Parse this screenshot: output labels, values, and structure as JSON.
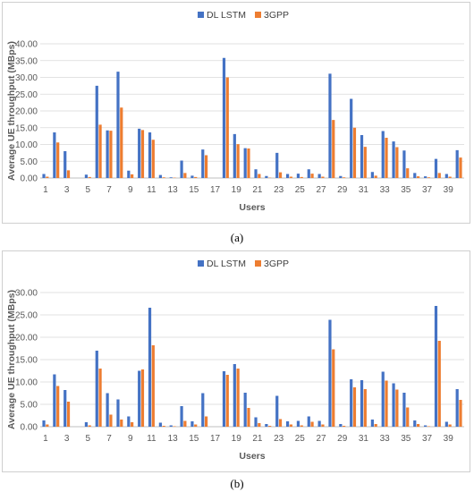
{
  "colors": {
    "dl_lstm": "#4472c4",
    "threegpp": "#ed7d31",
    "grid": "#d9d9d9",
    "axis": "#bfbfbf"
  },
  "figure_labels": {
    "a": "(a)",
    "b": "(b)"
  },
  "chart_data": [
    {
      "type": "bar",
      "panel": "a",
      "ylabel": "Average UE throughput (MBps)",
      "xlabel": "Users",
      "ylim": [
        0,
        40
      ],
      "ytick_values": [
        0,
        5,
        10,
        15,
        20,
        25,
        30,
        35,
        40
      ],
      "ytick_labels": [
        "0.00",
        "5.00",
        "10.00",
        "15.00",
        "20.00",
        "25.00",
        "30.00",
        "35.00",
        "40.00"
      ],
      "categories": [
        1,
        2,
        3,
        4,
        5,
        6,
        7,
        8,
        9,
        10,
        11,
        12,
        13,
        14,
        15,
        16,
        17,
        18,
        19,
        20,
        21,
        22,
        23,
        24,
        25,
        26,
        27,
        28,
        29,
        30,
        31,
        32,
        33,
        34,
        35,
        36,
        37,
        38,
        39,
        40
      ],
      "xtick_labels": [
        "1",
        "3",
        "5",
        "7",
        "9",
        "11",
        "13",
        "15",
        "17",
        "19",
        "21",
        "23",
        "25",
        "27",
        "29",
        "31",
        "33",
        "35",
        "37",
        "39"
      ],
      "legend_position": "top",
      "grid": true,
      "series": [
        {
          "name": "DL LSTM",
          "values": [
            1.2,
            13.6,
            8.0,
            0,
            1.0,
            27.5,
            14.2,
            31.7,
            2.2,
            14.7,
            13.6,
            0.9,
            0.2,
            5.2,
            0.7,
            8.5,
            0,
            35.8,
            13.1,
            8.9,
            2.6,
            0.6,
            7.5,
            1.2,
            1.3,
            2.6,
            1.2,
            31.1,
            0.6,
            23.6,
            12.8,
            1.8,
            14.0,
            10.9,
            8.2,
            1.5,
            0.5,
            5.7,
            1.2,
            8.3
          ]
        },
        {
          "name": "3GPP",
          "values": [
            0.4,
            10.6,
            2.3,
            0,
            0.3,
            15.9,
            14.1,
            21.0,
            1.1,
            14.3,
            11.4,
            0.2,
            0.1,
            1.5,
            0.3,
            6.8,
            0,
            30.0,
            10.1,
            8.8,
            1.2,
            0.1,
            1.7,
            0.4,
            0.3,
            1.3,
            0.4,
            17.3,
            0.2,
            15.0,
            9.3,
            0.7,
            12.0,
            9.2,
            2.9,
            0.5,
            0.2,
            1.5,
            0.4,
            6.1
          ]
        }
      ]
    },
    {
      "type": "bar",
      "panel": "b",
      "ylabel": "Average UE throughput (MBps)",
      "xlabel": "Users",
      "ylim": [
        0,
        30
      ],
      "ytick_values": [
        0,
        5,
        10,
        15,
        20,
        25,
        30
      ],
      "ytick_labels": [
        "0.00",
        "5.00",
        "10.00",
        "15.00",
        "20.00",
        "25.00",
        "30.00"
      ],
      "categories": [
        1,
        2,
        3,
        4,
        5,
        6,
        7,
        8,
        9,
        10,
        11,
        12,
        13,
        14,
        15,
        16,
        17,
        18,
        19,
        20,
        21,
        22,
        23,
        24,
        25,
        26,
        27,
        28,
        29,
        30,
        31,
        32,
        33,
        34,
        35,
        36,
        37,
        38,
        39,
        40
      ],
      "xtick_labels": [
        "1",
        "3",
        "5",
        "7",
        "9",
        "11",
        "13",
        "15",
        "17",
        "19",
        "21",
        "23",
        "25",
        "27",
        "29",
        "31",
        "33",
        "35",
        "37",
        "39"
      ],
      "legend_position": "top",
      "grid": true,
      "series": [
        {
          "name": "DL LSTM",
          "values": [
            1.4,
            11.7,
            8.2,
            0,
            1.0,
            17.0,
            7.5,
            6.1,
            2.3,
            12.5,
            26.6,
            0.9,
            0.3,
            4.6,
            1.2,
            7.5,
            0,
            12.4,
            14.0,
            7.6,
            2.1,
            0.6,
            6.9,
            1.2,
            1.3,
            2.3,
            1.3,
            23.9,
            0.6,
            10.6,
            10.4,
            1.6,
            12.3,
            9.7,
            7.6,
            1.4,
            0.3,
            27.0,
            1.1,
            8.4
          ]
        },
        {
          "name": "3GPP",
          "values": [
            0.5,
            9.1,
            5.6,
            0,
            0.3,
            13.0,
            2.7,
            1.6,
            1.0,
            12.8,
            18.2,
            0.2,
            0.1,
            1.3,
            0.5,
            2.3,
            0,
            11.6,
            13.0,
            4.2,
            0.8,
            0.2,
            1.7,
            0.5,
            0.3,
            1.1,
            0.5,
            17.3,
            0.2,
            8.8,
            8.4,
            0.6,
            10.3,
            8.3,
            4.3,
            0.6,
            0.1,
            19.2,
            0.5,
            6.0
          ]
        }
      ]
    }
  ]
}
